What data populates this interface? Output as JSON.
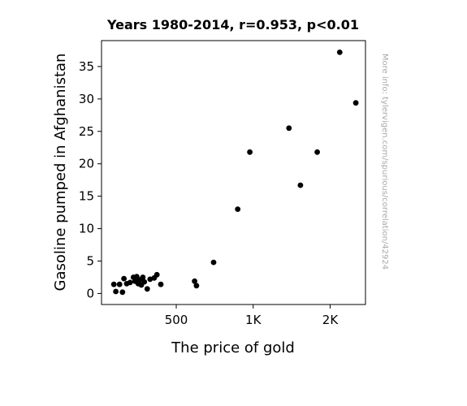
{
  "chart_data": {
    "type": "scatter",
    "title": "Years 1980-2014, r=0.953, p<0.01",
    "xlabel": "The price of gold",
    "ylabel": "Gasoline pumped in Afghanistan",
    "x_scale": "log",
    "xlim": [
      255,
      2750
    ],
    "ylim": [
      -1.7,
      39
    ],
    "x_ticks": [
      {
        "value": 500,
        "label": "500"
      },
      {
        "value": 1000,
        "label": "1K"
      },
      {
        "value": 2000,
        "label": "2K"
      }
    ],
    "y_ticks": [
      {
        "value": 0,
        "label": "0"
      },
      {
        "value": 5,
        "label": "5"
      },
      {
        "value": 10,
        "label": "10"
      },
      {
        "value": 15,
        "label": "15"
      },
      {
        "value": 20,
        "label": "20"
      },
      {
        "value": 25,
        "label": "25"
      },
      {
        "value": 30,
        "label": "30"
      },
      {
        "value": 35,
        "label": "35"
      }
    ],
    "grid": false,
    "marker_color": "#000000",
    "points": [
      {
        "x": 285,
        "y": 1.4
      },
      {
        "x": 290,
        "y": 0.3
      },
      {
        "x": 300,
        "y": 1.4
      },
      {
        "x": 308,
        "y": 0.2
      },
      {
        "x": 312,
        "y": 2.3
      },
      {
        "x": 320,
        "y": 1.5
      },
      {
        "x": 330,
        "y": 1.7
      },
      {
        "x": 340,
        "y": 2.5
      },
      {
        "x": 345,
        "y": 1.9
      },
      {
        "x": 350,
        "y": 2.6
      },
      {
        "x": 355,
        "y": 1.5
      },
      {
        "x": 360,
        "y": 2.1
      },
      {
        "x": 365,
        "y": 1.3
      },
      {
        "x": 370,
        "y": 2.5
      },
      {
        "x": 375,
        "y": 1.8
      },
      {
        "x": 385,
        "y": 0.7
      },
      {
        "x": 395,
        "y": 2.2
      },
      {
        "x": 410,
        "y": 2.4
      },
      {
        "x": 420,
        "y": 2.9
      },
      {
        "x": 435,
        "y": 1.4
      },
      {
        "x": 590,
        "y": 1.9
      },
      {
        "x": 600,
        "y": 1.2
      },
      {
        "x": 700,
        "y": 4.8
      },
      {
        "x": 870,
        "y": 13.0
      },
      {
        "x": 970,
        "y": 21.8
      },
      {
        "x": 1380,
        "y": 25.5
      },
      {
        "x": 1530,
        "y": 16.7
      },
      {
        "x": 1780,
        "y": 21.8
      },
      {
        "x": 2180,
        "y": 37.2
      },
      {
        "x": 2520,
        "y": 29.4
      }
    ]
  },
  "watermark": "More info: tylervigen.com/spurious/correlation/42924"
}
